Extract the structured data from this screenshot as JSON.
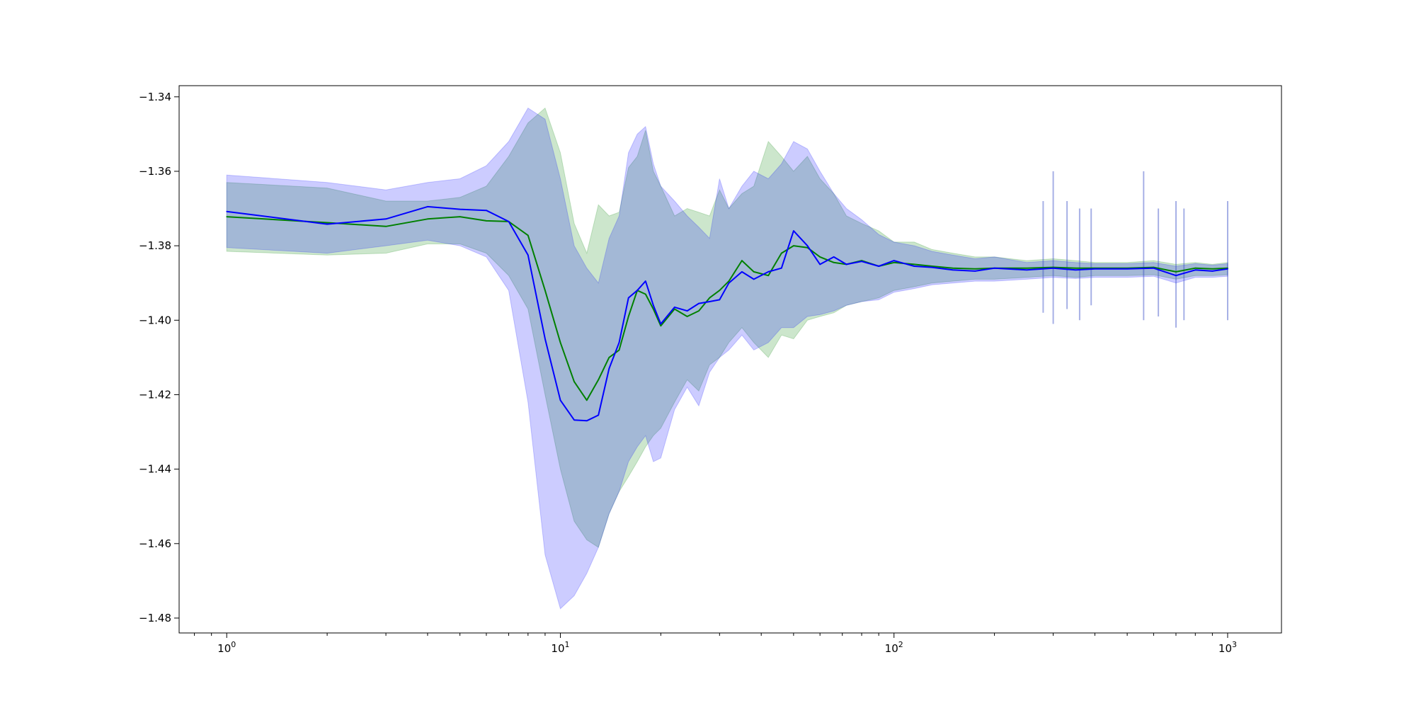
{
  "chart_data": {
    "type": "line",
    "title": "",
    "xlabel": "",
    "ylabel": "",
    "x_scale": "log",
    "xlim": [
      0.72,
      1450
    ],
    "ylim": [
      -1.484,
      -1.337
    ],
    "grid": false,
    "legend": null,
    "colors": {
      "green": "#008000",
      "blue": "#0000ff",
      "green_band": "rgba(0,128,0,0.2)",
      "blue_band": "rgba(0,0,255,0.2)"
    },
    "x_ticks": [
      {
        "value": 1,
        "base": "10",
        "exp": "0"
      },
      {
        "value": 10,
        "base": "10",
        "exp": "1"
      },
      {
        "value": 100,
        "base": "10",
        "exp": "2"
      },
      {
        "value": 1000,
        "base": "10",
        "exp": "3"
      }
    ],
    "y_ticks": [
      {
        "value": -1.34,
        "label": "−1.34"
      },
      {
        "value": -1.36,
        "label": "−1.36"
      },
      {
        "value": -1.38,
        "label": "−1.38"
      },
      {
        "value": -1.4,
        "label": "−1.40"
      },
      {
        "value": -1.42,
        "label": "−1.42"
      },
      {
        "value": -1.44,
        "label": "−1.44"
      },
      {
        "value": -1.46,
        "label": "−1.46"
      },
      {
        "value": -1.48,
        "label": "−1.48"
      }
    ],
    "x": [
      1,
      2,
      3,
      4,
      5,
      6,
      7,
      8,
      9,
      10,
      11,
      12,
      13,
      14,
      15,
      16,
      17,
      18,
      19,
      20,
      22,
      24,
      26,
      28,
      30,
      32,
      35,
      38,
      42,
      46,
      50,
      55,
      60,
      66,
      72,
      80,
      90,
      100,
      115,
      130,
      150,
      175,
      200,
      250,
      300,
      350,
      400,
      500,
      600,
      700,
      800,
      900,
      1000
    ],
    "series": [
      {
        "name": "",
        "color": "green",
        "values": [
          -1.3722,
          -1.3738,
          -1.3748,
          -1.3728,
          -1.3722,
          -1.3733,
          -1.3735,
          -1.3772,
          -1.392,
          -1.406,
          -1.4165,
          -1.4215,
          -1.416,
          -1.41,
          -1.408,
          -1.399,
          -1.392,
          -1.393,
          -1.397,
          -1.4015,
          -1.397,
          -1.399,
          -1.3975,
          -1.394,
          -1.392,
          -1.3895,
          -1.384,
          -1.387,
          -1.388,
          -1.382,
          -1.38,
          -1.3805,
          -1.383,
          -1.3845,
          -1.385,
          -1.384,
          -1.3855,
          -1.3845,
          -1.385,
          -1.3855,
          -1.386,
          -1.3862,
          -1.386,
          -1.386,
          -1.3858,
          -1.386,
          -1.386,
          -1.386,
          -1.3858,
          -1.387,
          -1.386,
          -1.3862,
          -1.386
        ],
        "band_upper": [
          -1.363,
          -1.3645,
          -1.368,
          -1.368,
          -1.367,
          -1.364,
          -1.356,
          -1.347,
          -1.343,
          -1.355,
          -1.374,
          -1.382,
          -1.369,
          -1.372,
          -1.371,
          -1.359,
          -1.356,
          -1.349,
          -1.36,
          -1.364,
          -1.372,
          -1.37,
          -1.371,
          -1.372,
          -1.365,
          -1.37,
          -1.366,
          -1.364,
          -1.352,
          -1.356,
          -1.36,
          -1.356,
          -1.362,
          -1.366,
          -1.372,
          -1.374,
          -1.376,
          -1.379,
          -1.379,
          -1.381,
          -1.382,
          -1.383,
          -1.383,
          -1.384,
          -1.3835,
          -1.384,
          -1.3845,
          -1.3845,
          -1.384,
          -1.385,
          -1.3845,
          -1.385,
          -1.3845
        ],
        "band_lower": [
          -1.3815,
          -1.3825,
          -1.382,
          -1.3795,
          -1.3795,
          -1.382,
          -1.388,
          -1.397,
          -1.42,
          -1.44,
          -1.454,
          -1.459,
          -1.461,
          -1.452,
          -1.446,
          -1.442,
          -1.438,
          -1.434,
          -1.431,
          -1.429,
          -1.422,
          -1.416,
          -1.419,
          -1.412,
          -1.41,
          -1.406,
          -1.402,
          -1.406,
          -1.41,
          -1.404,
          -1.405,
          -1.4,
          -1.399,
          -1.398,
          -1.396,
          -1.395,
          -1.394,
          -1.392,
          -1.391,
          -1.39,
          -1.3895,
          -1.389,
          -1.389,
          -1.3885,
          -1.388,
          -1.3885,
          -1.388,
          -1.388,
          -1.3878,
          -1.389,
          -1.388,
          -1.388,
          -1.3878
        ]
      },
      {
        "name": "",
        "color": "blue",
        "values": [
          -1.3708,
          -1.3742,
          -1.3728,
          -1.3695,
          -1.3702,
          -1.3705,
          -1.3735,
          -1.3825,
          -1.405,
          -1.4215,
          -1.4268,
          -1.427,
          -1.4255,
          -1.413,
          -1.406,
          -1.394,
          -1.392,
          -1.3895,
          -1.396,
          -1.401,
          -1.3965,
          -1.3975,
          -1.3955,
          -1.395,
          -1.3945,
          -1.39,
          -1.387,
          -1.389,
          -1.387,
          -1.386,
          -1.376,
          -1.38,
          -1.385,
          -1.383,
          -1.385,
          -1.3842,
          -1.3855,
          -1.384,
          -1.3855,
          -1.3858,
          -1.3865,
          -1.3868,
          -1.386,
          -1.3865,
          -1.386,
          -1.3865,
          -1.3862,
          -1.3862,
          -1.386,
          -1.388,
          -1.3865,
          -1.3868,
          -1.3862
        ],
        "band_upper": [
          -1.361,
          -1.363,
          -1.365,
          -1.363,
          -1.362,
          -1.3585,
          -1.352,
          -1.343,
          -1.346,
          -1.362,
          -1.38,
          -1.386,
          -1.39,
          -1.378,
          -1.372,
          -1.355,
          -1.35,
          -1.348,
          -1.358,
          -1.364,
          -1.368,
          -1.372,
          -1.375,
          -1.378,
          -1.362,
          -1.37,
          -1.364,
          -1.36,
          -1.362,
          -1.358,
          -1.352,
          -1.354,
          -1.36,
          -1.366,
          -1.37,
          -1.373,
          -1.377,
          -1.379,
          -1.38,
          -1.3815,
          -1.3825,
          -1.3835,
          -1.383,
          -1.3845,
          -1.384,
          -1.3845,
          -1.3848,
          -1.3848,
          -1.3845,
          -1.3855,
          -1.3848,
          -1.3852,
          -1.3848
        ],
        "band_lower": [
          -1.3805,
          -1.382,
          -1.38,
          -1.3785,
          -1.38,
          -1.383,
          -1.392,
          -1.422,
          -1.463,
          -1.4775,
          -1.474,
          -1.468,
          -1.461,
          -1.452,
          -1.446,
          -1.438,
          -1.434,
          -1.431,
          -1.438,
          -1.437,
          -1.424,
          -1.418,
          -1.423,
          -1.414,
          -1.41,
          -1.408,
          -1.404,
          -1.408,
          -1.406,
          -1.402,
          -1.402,
          -1.399,
          -1.3985,
          -1.3975,
          -1.396,
          -1.395,
          -1.3945,
          -1.3925,
          -1.3915,
          -1.3905,
          -1.39,
          -1.3895,
          -1.3895,
          -1.389,
          -1.3885,
          -1.3888,
          -1.3885,
          -1.3885,
          -1.3882,
          -1.39,
          -1.3885,
          -1.3885,
          -1.3882
        ]
      }
    ],
    "spikes": [
      {
        "x": 280,
        "upper": -1.368,
        "lower": -1.398
      },
      {
        "x": 300,
        "upper": -1.36,
        "lower": -1.401
      },
      {
        "x": 330,
        "upper": -1.368,
        "lower": -1.397
      },
      {
        "x": 360,
        "upper": -1.37,
        "lower": -1.4
      },
      {
        "x": 390,
        "upper": -1.37,
        "lower": -1.396
      },
      {
        "x": 560,
        "upper": -1.36,
        "lower": -1.4
      },
      {
        "x": 620,
        "upper": -1.37,
        "lower": -1.399
      },
      {
        "x": 700,
        "upper": -1.368,
        "lower": -1.402
      },
      {
        "x": 740,
        "upper": -1.37,
        "lower": -1.4
      },
      {
        "x": 1000,
        "upper": -1.368,
        "lower": -1.4
      }
    ]
  }
}
